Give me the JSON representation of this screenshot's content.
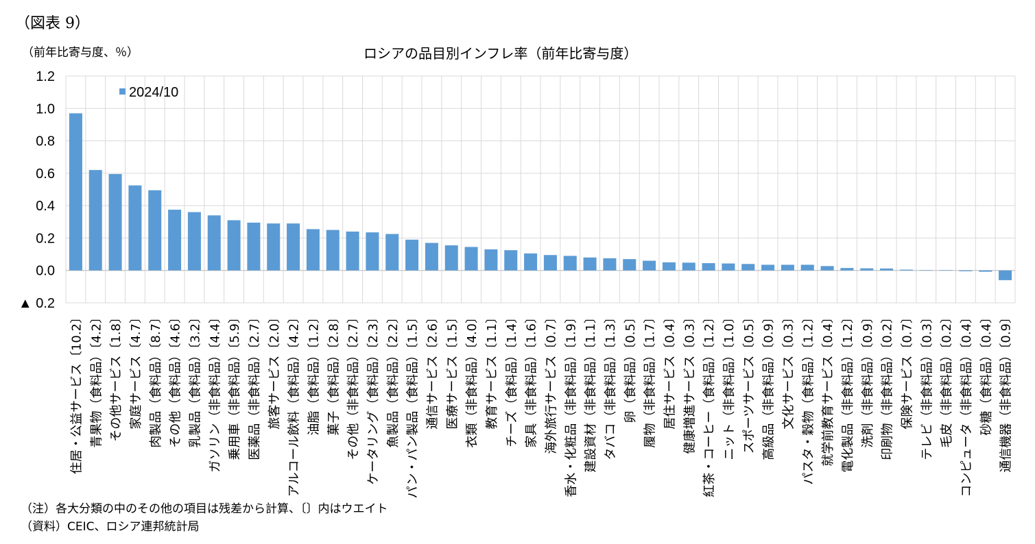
{
  "figure_label": "（図表 9）",
  "unit_label": "（前年比寄与度、％）",
  "notes": [
    "（注）各大分類の中のその他の項目は残差から計算、〔〕内はウエイト",
    "（資料）CEIC、ロシア連邦統計局"
  ],
  "colors": {
    "bar": "#5b9bd5",
    "grid": "#d9d9d9",
    "axis": "#bfbfbf"
  },
  "chart_data": {
    "type": "bar",
    "title": "ロシアの品目別インフレ率（前年比寄与度）",
    "xlabel": "",
    "ylabel": "",
    "ylim": [
      -0.2,
      1.2
    ],
    "yticks": [
      1.2,
      1.0,
      0.8,
      0.6,
      0.4,
      0.2,
      0.0,
      -0.2
    ],
    "ytick_labels": [
      "1.2",
      "1.0",
      "0.8",
      "0.6",
      "0.4",
      "0.2",
      "0.0",
      "▲ 0.2"
    ],
    "grid": true,
    "legend_position": "top-left",
    "categories": [
      "住居・公益サービス〔10.2〕",
      "青果物（食料品）〔4.2〕",
      "その他サービス〔1.8〕",
      "家庭サービス〔4.7〕",
      "肉製品（食料品）〔8.7〕",
      "その他（食料品）〔4.6〕",
      "乳製品（食料品）〔3.2〕",
      "ガソリン（非食料品）〔4.4〕",
      "乗用車（非食料品）〔5.9〕",
      "医薬品（非食料品）〔2.7〕",
      "旅客サービス〔2.0〕",
      "アルコール飲料（食料品）〔4.2〕",
      "油脂（食料品）〔1.2〕",
      "菓子（食料品）〔2.8〕",
      "その他（非食料品）〔2.7〕",
      "ケータリング（食料品）〔2.3〕",
      "魚製品（食料品）〔2.2〕",
      "パン・パン製品（食料品）〔1.5〕",
      "通信サービス〔2.6〕",
      "医療サービス〔1.5〕",
      "衣類（非食料品）〔4.0〕",
      "教育サービス〔1.1〕",
      "チーズ（食料品）〔1.4〕",
      "家具（非食料品）〔1.6〕",
      "海外旅行サービス〔0.7〕",
      "香水・化粧品（非食料品）〔1.9〕",
      "建設資材（非食料品）〔1.1〕",
      "タバコ（非食料品）〔1.3〕",
      "卵（食料品）〔0.5〕",
      "履物（非食料品）〔1.7〕",
      "居住サービス〔0.4〕",
      "健康増進サービス〔0.3〕",
      "紅茶・コーヒー（食料品）〔1.2〕",
      "ニット（非食料品）〔1.0〕",
      "スポーツサービス〔0.5〕",
      "高級品（非食料品）〔0.9〕",
      "文化サービス〔0.3〕",
      "パスタ・穀物（食料品）〔1.2〕",
      "就学前教育サービス〔0.4〕",
      "電化製品（非食料品）〔1.2〕",
      "洗剤（非食料品）〔0.9〕",
      "印刷物（非食料品）〔0.2〕",
      "保険サービス〔0.7〕",
      "テレビ（非食料品）〔0.3〕",
      "毛皮（非食料品）〔0.2〕",
      "コンピュータ（非食料品）〔0.4〕",
      "砂糖（食料品）〔0.4〕",
      "通信機器（非食料品）〔0.9〕"
    ],
    "series": [
      {
        "name": "2024/10",
        "values": [
          0.97,
          0.62,
          0.595,
          0.525,
          0.495,
          0.375,
          0.36,
          0.34,
          0.31,
          0.295,
          0.29,
          0.29,
          0.255,
          0.25,
          0.24,
          0.235,
          0.225,
          0.19,
          0.17,
          0.155,
          0.145,
          0.13,
          0.125,
          0.105,
          0.095,
          0.09,
          0.08,
          0.075,
          0.07,
          0.06,
          0.05,
          0.048,
          0.045,
          0.043,
          0.04,
          0.035,
          0.035,
          0.035,
          0.027,
          0.015,
          0.013,
          0.012,
          0.005,
          0.002,
          0.002,
          -0.005,
          -0.008,
          -0.06
        ]
      }
    ]
  }
}
